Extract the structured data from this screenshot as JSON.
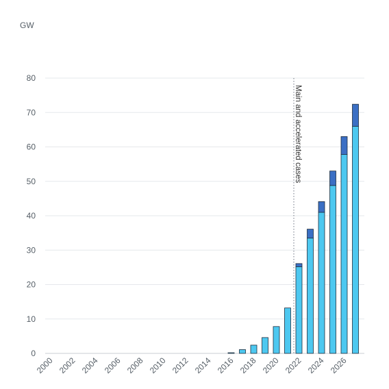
{
  "chart_data": {
    "type": "bar",
    "stacked": true,
    "unit": "GW",
    "categories": [
      "2000",
      "2001",
      "2002",
      "2003",
      "2004",
      "2005",
      "2006",
      "2007",
      "2008",
      "2009",
      "2010",
      "2011",
      "2012",
      "2013",
      "2014",
      "2015",
      "2016",
      "2017",
      "2018",
      "2019",
      "2020",
      "2021",
      "2022",
      "2023",
      "2024",
      "2025",
      "2026",
      "2027"
    ],
    "x_tick_labels": [
      "2000",
      "2002",
      "2004",
      "2006",
      "2008",
      "2010",
      "2012",
      "2014",
      "2016",
      "2018",
      "2020",
      "2022",
      "2024",
      "2026"
    ],
    "ylim": [
      0,
      80
    ],
    "y_ticks": [
      0,
      10,
      20,
      30,
      40,
      50,
      60,
      70,
      80
    ],
    "grid": true,
    "colors": {
      "main": "#4dc8f0",
      "accelerated": "#3b6fc4",
      "edge": "#1f2d3d"
    },
    "series": [
      {
        "key": "main",
        "values": [
          0,
          0,
          0,
          0,
          0,
          0,
          0,
          0,
          0,
          0,
          0,
          0,
          0,
          0,
          0,
          0,
          0.2,
          1.1,
          2.4,
          4.6,
          7.8,
          13.2,
          25.2,
          33.5,
          41,
          48.8,
          57.8,
          66
        ]
      },
      {
        "key": "accelerated",
        "values": [
          0,
          0,
          0,
          0,
          0,
          0,
          0,
          0,
          0,
          0,
          0,
          0,
          0,
          0,
          0,
          0,
          0,
          0,
          0,
          0,
          0,
          0,
          0.9,
          2.6,
          3.1,
          4.2,
          5.2,
          6.4
        ]
      }
    ],
    "annotation": {
      "text": "Main and accelerated cases",
      "after_category": "2021"
    }
  }
}
